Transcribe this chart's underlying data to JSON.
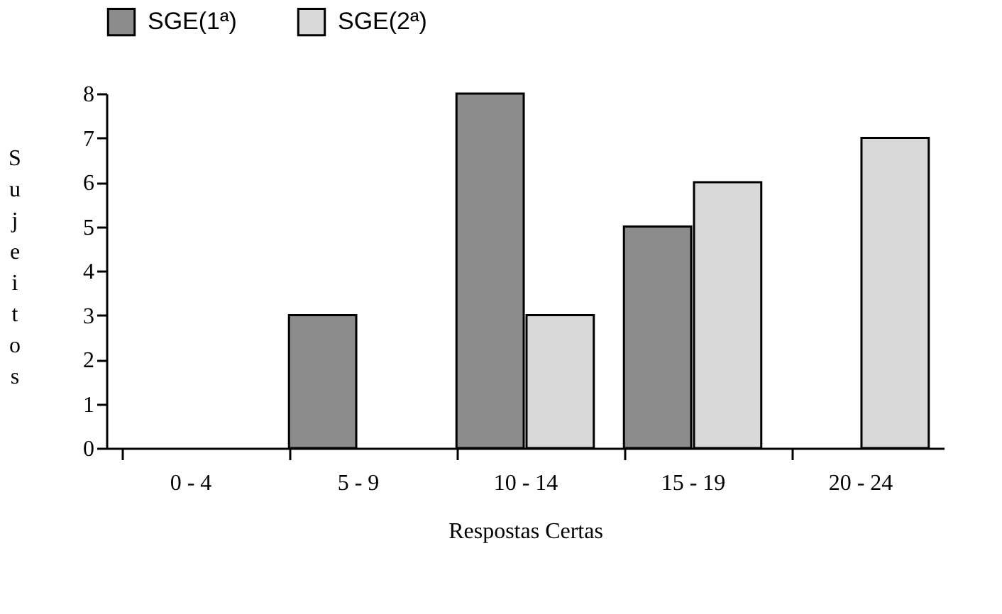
{
  "chart_data": {
    "type": "bar",
    "xlabel": "Respostas Certas",
    "ylabel": "Sujeitos",
    "categories": [
      "0 - 4",
      "5 - 9",
      "10 - 14",
      "15 - 19",
      "20 - 24"
    ],
    "series": [
      {
        "name": "SGE(1ª)",
        "color": "#8c8c8c",
        "values": [
          0,
          3,
          8,
          5,
          0
        ]
      },
      {
        "name": "SGE(2ª)",
        "color": "#d9d9d9",
        "values": [
          0,
          0,
          3,
          6,
          7
        ]
      }
    ],
    "ylim": [
      0,
      8
    ],
    "yticks": [
      0,
      1,
      2,
      3,
      4,
      5,
      6,
      7,
      8
    ],
    "grid": false,
    "legend": "top"
  }
}
